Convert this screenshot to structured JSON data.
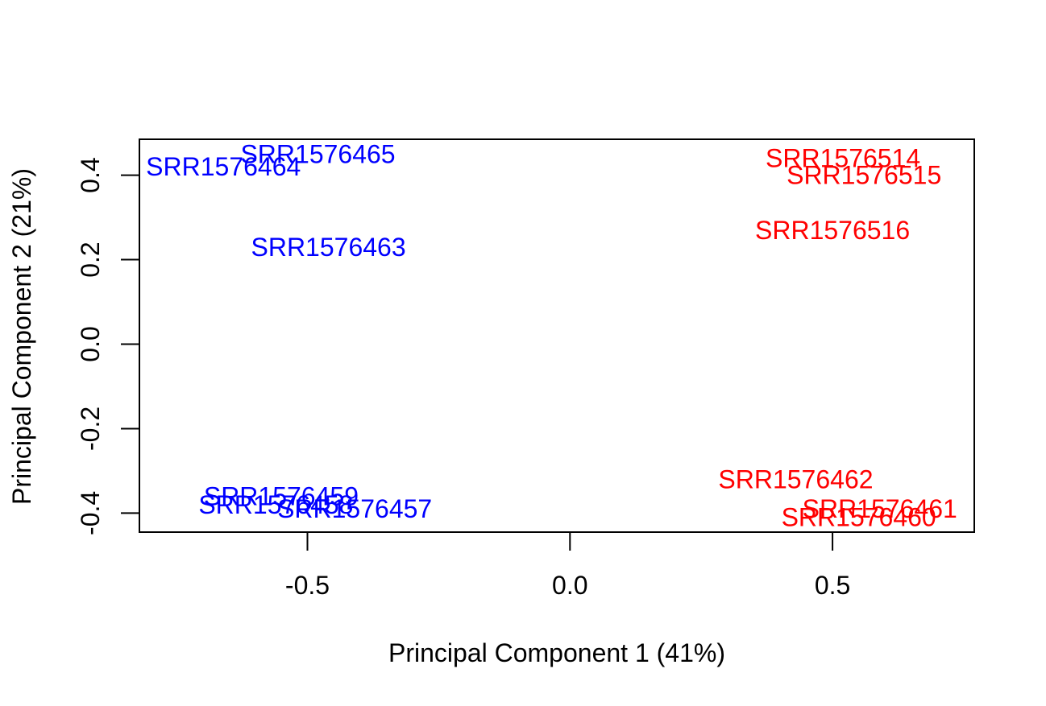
{
  "chart_data": {
    "type": "scatter",
    "title": "",
    "xlabel": "Principal Component 1 (41%)",
    "ylabel": "Principal Component 2 (21%)",
    "xlim": [
      -0.82,
      0.77
    ],
    "ylim": [
      -0.445,
      0.485
    ],
    "xticks": [
      -0.5,
      0.0,
      0.5
    ],
    "xtick_labels": [
      "-0.5",
      "0.0",
      "0.5"
    ],
    "yticks": [
      -0.4,
      -0.2,
      0.0,
      0.2,
      0.4
    ],
    "ytick_labels": [
      "-0.4",
      "-0.2",
      "0.0",
      "0.2",
      "0.4"
    ],
    "grid": false,
    "legend": "none",
    "series": [
      {
        "color": "#0000ff",
        "points": [
          {
            "label": "SRR1576465",
            "x": -0.48,
            "y": 0.45
          },
          {
            "label": "SRR1576464",
            "x": -0.66,
            "y": 0.42
          },
          {
            "label": "SRR1576463",
            "x": -0.46,
            "y": 0.23
          },
          {
            "label": "SRR1576459",
            "x": -0.55,
            "y": -0.36
          },
          {
            "label": "SRR1576458",
            "x": -0.56,
            "y": -0.38
          },
          {
            "label": "SRR1576457",
            "x": -0.41,
            "y": -0.39
          }
        ]
      },
      {
        "color": "#ff0000",
        "points": [
          {
            "label": "SRR1576514",
            "x": 0.52,
            "y": 0.44
          },
          {
            "label": "SRR1576515",
            "x": 0.56,
            "y": 0.4
          },
          {
            "label": "SRR1576516",
            "x": 0.5,
            "y": 0.27
          },
          {
            "label": "SRR1576462",
            "x": 0.43,
            "y": -0.32
          },
          {
            "label": "SRR1576461",
            "x": 0.59,
            "y": -0.39
          },
          {
            "label": "SRR1576460",
            "x": 0.55,
            "y": -0.41
          }
        ]
      }
    ]
  }
}
